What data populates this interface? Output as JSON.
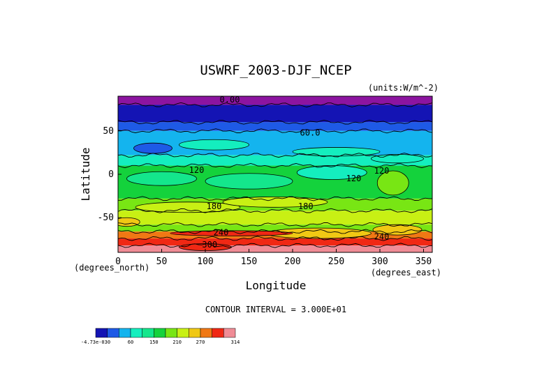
{
  "chart_data": {
    "type": "heatmap",
    "title": "USWRF_2003-DJF_NCEP",
    "units_label": "(units:W/m^-2)",
    "xlabel": "Longitude",
    "ylabel": "Latitude",
    "x_unit_label": "(degrees_east)",
    "y_unit_label": "(degrees_north)",
    "xlim": [
      0,
      360
    ],
    "ylim": [
      -90,
      90
    ],
    "x_ticks": [
      0,
      50,
      100,
      150,
      200,
      250,
      300,
      350
    ],
    "y_ticks": [
      50,
      0,
      -50
    ],
    "contour_interval_text": "CONTOUR INTERVAL = 3.000E+01",
    "contour_labels": [
      {
        "text": "0.00",
        "lon": 128,
        "lat": 86
      },
      {
        "text": "60.0",
        "lon": 220,
        "lat": 48
      },
      {
        "text": "120",
        "lon": 90,
        "lat": 5
      },
      {
        "text": "120",
        "lon": 302,
        "lat": 4
      },
      {
        "text": "120",
        "lon": 270,
        "lat": -5
      },
      {
        "text": "180",
        "lon": 110,
        "lat": -37
      },
      {
        "text": "180",
        "lon": 215,
        "lat": -37
      },
      {
        "text": "240",
        "lon": 118,
        "lat": -67
      },
      {
        "text": "240",
        "lon": 302,
        "lat": -72
      },
      {
        "text": "300",
        "lon": 105,
        "lat": -81
      }
    ],
    "colorbar": {
      "labels": [
        "-4.73e-030",
        "60",
        "150",
        "210",
        "270",
        "314"
      ],
      "colors": [
        "#1414b4",
        "#1e5ae6",
        "#14b4ee",
        "#14eebe",
        "#14e68c",
        "#14d23c",
        "#78e614",
        "#c8f014",
        "#f0c814",
        "#f07814",
        "#f02814",
        "#f08c96"
      ]
    }
  }
}
